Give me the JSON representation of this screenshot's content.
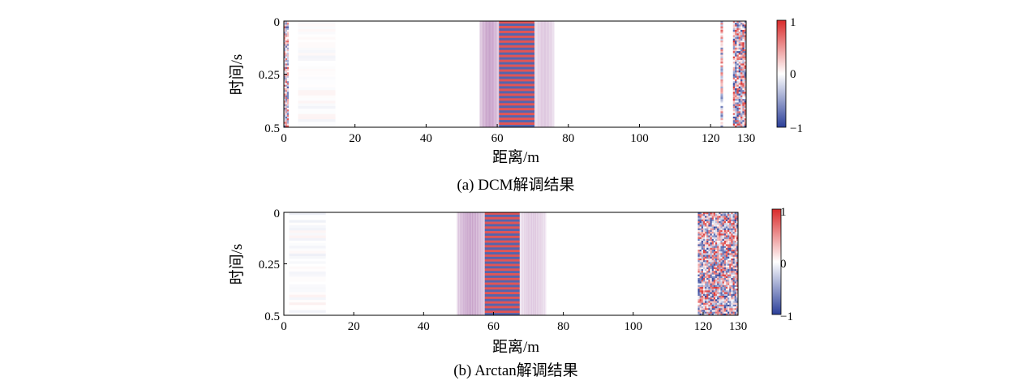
{
  "chart_data": [
    {
      "type": "heatmap",
      "caption": "(a) DCM解调结果",
      "xlabel": "距离/m",
      "ylabel": "时间/s",
      "xlim": [
        0,
        130
      ],
      "ylim": [
        0,
        0.5
      ],
      "x_ticks": [
        0,
        20,
        40,
        60,
        80,
        100,
        120,
        130
      ],
      "x_tick_labels": [
        "0",
        "20",
        "40",
        "60",
        "80",
        "100",
        "120",
        "130"
      ],
      "y_ticks": [
        0,
        0.25,
        0.5
      ],
      "y_tick_labels": [
        "0",
        "0.25",
        "0.5"
      ],
      "colorbar": {
        "range": [
          -1,
          1
        ],
        "ticks": [
          1,
          0,
          -1
        ],
        "labels": [
          "1",
          "0",
          "−1"
        ]
      },
      "colormap": {
        "low": "#2b3f99",
        "mid": "#ffffff",
        "high": "#d92b2b"
      },
      "features": [
        {
          "kind": "noise",
          "from": 0,
          "to": 1.3,
          "intensity": 0.85
        },
        {
          "kind": "faint",
          "from": 4,
          "to": 14.5,
          "intensity": 0.06
        },
        {
          "kind": "glow",
          "from": 55,
          "to": 60.5,
          "intensity": 0.35
        },
        {
          "kind": "stripes",
          "from": 60.5,
          "to": 70.5,
          "intensity": 0.8
        },
        {
          "kind": "glow",
          "from": 70.5,
          "to": 76,
          "intensity": 0.2
        },
        {
          "kind": "line",
          "from": 122.8,
          "to": 123.5,
          "intensity": 0.75
        },
        {
          "kind": "noise",
          "from": 126.3,
          "to": 130,
          "intensity": 0.95
        }
      ]
    },
    {
      "type": "heatmap",
      "caption": "(b) Arctan解调结果",
      "xlabel": "距离/m",
      "ylabel": "时间/s",
      "xlim": [
        0,
        130
      ],
      "ylim": [
        0,
        0.5
      ],
      "x_ticks": [
        0,
        20,
        40,
        60,
        80,
        100,
        120,
        130
      ],
      "x_tick_labels": [
        "0",
        "20",
        "40",
        "60",
        "80",
        "100",
        "120",
        "130"
      ],
      "y_ticks": [
        0,
        0.25,
        0.5
      ],
      "y_tick_labels": [
        "0",
        "0.25",
        "0.5"
      ],
      "colorbar": {
        "range": [
          -1,
          1
        ],
        "ticks": [
          1,
          0,
          -1
        ],
        "labels": [
          "1",
          "0",
          "−1"
        ]
      },
      "colormap": {
        "low": "#2b3f99",
        "mid": "#ffffff",
        "high": "#d92b2b"
      },
      "features": [
        {
          "kind": "faint",
          "from": 1.5,
          "to": 12,
          "intensity": 0.08
        },
        {
          "kind": "glow",
          "from": 49.5,
          "to": 57.5,
          "intensity": 0.35
        },
        {
          "kind": "stripes",
          "from": 57.5,
          "to": 67.5,
          "intensity": 0.8
        },
        {
          "kind": "glow",
          "from": 67.5,
          "to": 75,
          "intensity": 0.2
        },
        {
          "kind": "noise",
          "from": 118.5,
          "to": 130,
          "intensity": 0.95
        }
      ]
    }
  ]
}
